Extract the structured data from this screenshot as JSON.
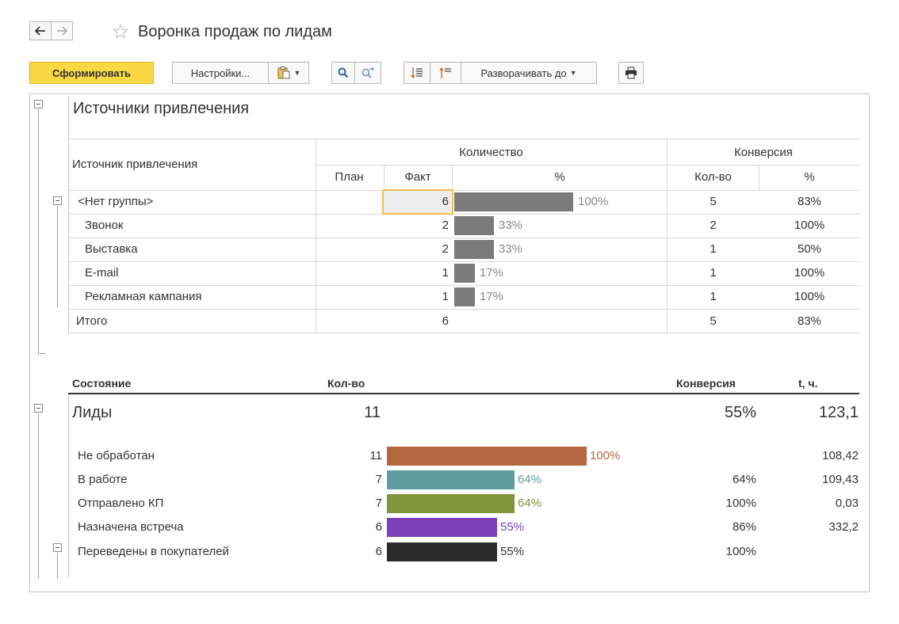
{
  "window": {
    "title": "Воронка продаж по лидам"
  },
  "toolbar": {
    "generate_label": "Сформировать",
    "settings_label": "Настройки...",
    "expand_label": "Разворачивать до"
  },
  "sources": {
    "section_title": "Источники привлечения",
    "headers": {
      "source": "Источник привлечения",
      "quantity": "Количество",
      "plan": "План",
      "fact": "Факт",
      "percent": "%",
      "conversion": "Конверсия",
      "count": "Кол-во",
      "conv_percent": "%"
    },
    "rows": [
      {
        "name": "<Нет группы>",
        "fact": "6",
        "pct_label": "100%",
        "pct": 1.0,
        "conv_count": "5",
        "conv_pct": "83%"
      },
      {
        "name": "Звонок",
        "fact": "2",
        "pct_label": "33%",
        "pct": 0.33,
        "conv_count": "2",
        "conv_pct": "100%"
      },
      {
        "name": "Выставка",
        "fact": "2",
        "pct_label": "33%",
        "pct": 0.33,
        "conv_count": "1",
        "conv_pct": "50%"
      },
      {
        "name": "E-mail",
        "fact": "1",
        "pct_label": "17%",
        "pct": 0.17,
        "conv_count": "1",
        "conv_pct": "100%"
      },
      {
        "name": "Рекламная кампания",
        "fact": "1",
        "pct_label": "17%",
        "pct": 0.17,
        "conv_count": "1",
        "conv_pct": "100%"
      }
    ],
    "total": {
      "name": "Итого",
      "fact": "6",
      "conv_count": "5",
      "conv_pct": "83%"
    }
  },
  "funnel": {
    "headers": {
      "state": "Состояние",
      "count": "Кол-во",
      "conversion": "Конверсия",
      "time": "t, ч."
    },
    "group": {
      "name": "Лиды",
      "count": "11",
      "conversion": "55%",
      "time": "123,1"
    },
    "rows": [
      {
        "name": "Не обработан",
        "count": "11",
        "pct": 1.0,
        "pct_label": "100%",
        "conversion": "",
        "time": "108,42",
        "color": "#b5683f"
      },
      {
        "name": "В работе",
        "count": "7",
        "pct": 0.64,
        "pct_label": "64%",
        "conversion": "64%",
        "time": "109,43",
        "color": "#5f9ea0"
      },
      {
        "name": "Отправлено КП",
        "count": "7",
        "pct": 0.64,
        "pct_label": "64%",
        "conversion": "100%",
        "time": "0,03",
        "color": "#7f953a"
      },
      {
        "name": "Назначена встреча",
        "count": "6",
        "pct": 0.55,
        "pct_label": "55%",
        "conversion": "86%",
        "time": "332,2",
        "color": "#7b3fb8"
      },
      {
        "name": "Переведены в покупателей",
        "count": "6",
        "pct": 0.55,
        "pct_label": "55%",
        "conversion": "100%",
        "time": "",
        "color": "#2b2b2b"
      }
    ]
  }
}
